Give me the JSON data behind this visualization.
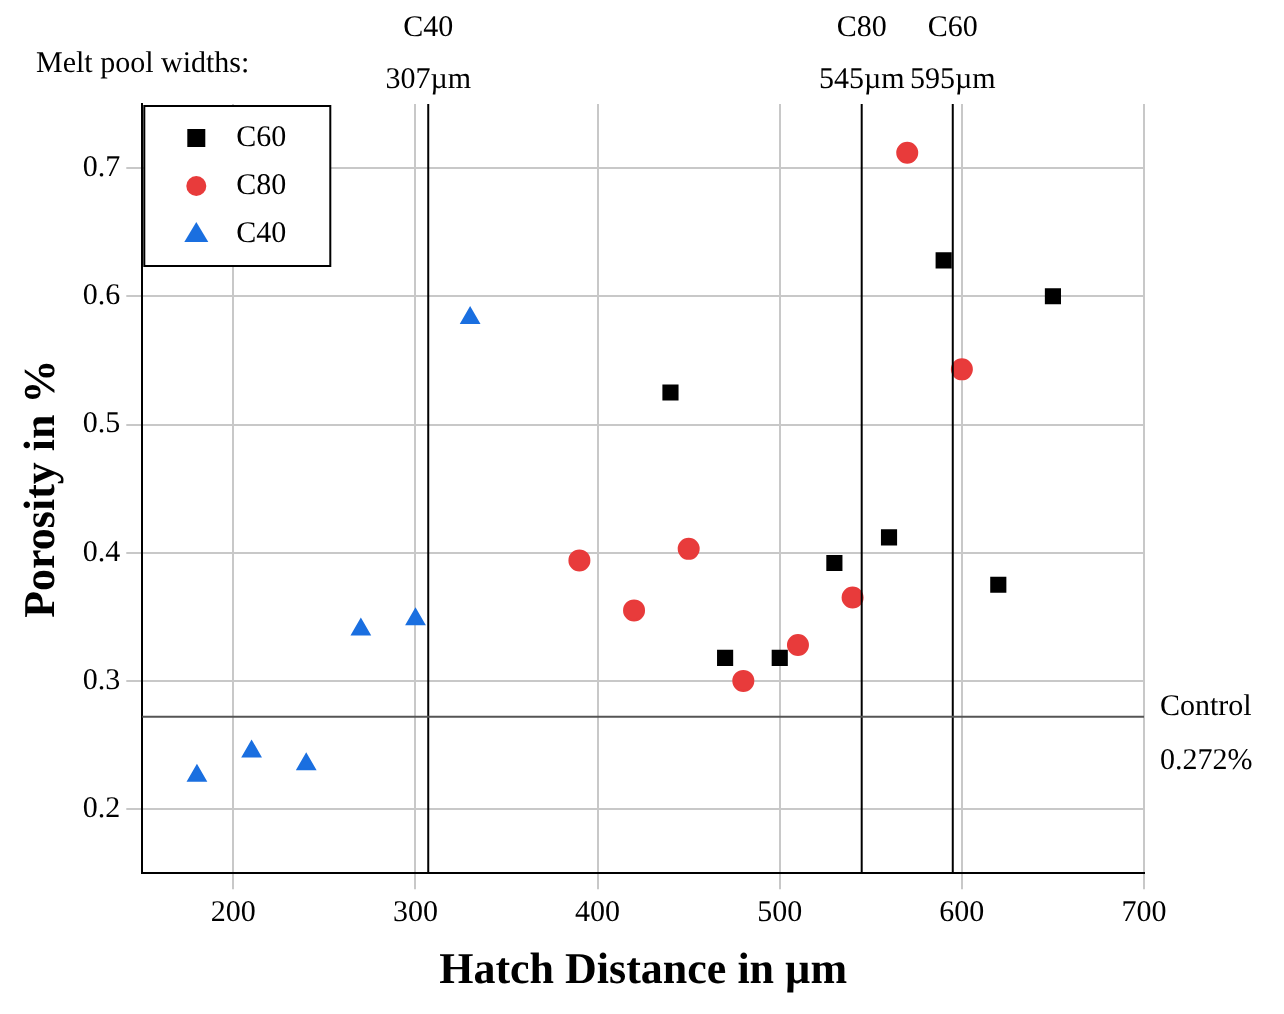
{
  "chart_data": {
    "type": "scatter",
    "xlabel": "Hatch Distance in µm",
    "ylabel": "Porosity in %",
    "xlim": [
      150,
      700
    ],
    "ylim": [
      0.15,
      0.75
    ],
    "xticks": [
      200,
      300,
      400,
      500,
      600,
      700
    ],
    "yticks": [
      0.2,
      0.3,
      0.4,
      0.5,
      0.6,
      0.7
    ],
    "grid": true,
    "legend": "top left",
    "series": [
      {
        "name": "C60",
        "color": "#000000",
        "marker": "square",
        "x": [
          440,
          470,
          500,
          530,
          560,
          590,
          620,
          650
        ],
        "values": [
          0.525,
          0.318,
          0.318,
          0.392,
          0.412,
          0.628,
          0.375,
          0.6
        ]
      },
      {
        "name": "C80",
        "color": "#e83b3b",
        "marker": "circle",
        "x": [
          390,
          420,
          450,
          480,
          510,
          540,
          570,
          600
        ],
        "values": [
          0.394,
          0.355,
          0.403,
          0.3,
          0.328,
          0.365,
          0.712,
          0.543
        ]
      },
      {
        "name": "C40",
        "color": "#1a6fe0",
        "marker": "triangle",
        "x": [
          180,
          210,
          240,
          270,
          300,
          330
        ],
        "values": [
          0.226,
          0.245,
          0.235,
          0.34,
          0.348,
          0.583
        ]
      }
    ],
    "ref_lines": [
      {
        "axis": "x",
        "value": 307,
        "label": "C40 307µm",
        "color": "#000000"
      },
      {
        "axis": "x",
        "value": 545,
        "label": "C80 545µm",
        "color": "#000000"
      },
      {
        "axis": "x",
        "value": 595,
        "label": "C60 595µm",
        "color": "#000000"
      },
      {
        "axis": "y",
        "value": 0.272,
        "label": "Control 0.272%",
        "color": "#555555"
      }
    ],
    "annotations": [
      "Melt pool widths:"
    ]
  }
}
